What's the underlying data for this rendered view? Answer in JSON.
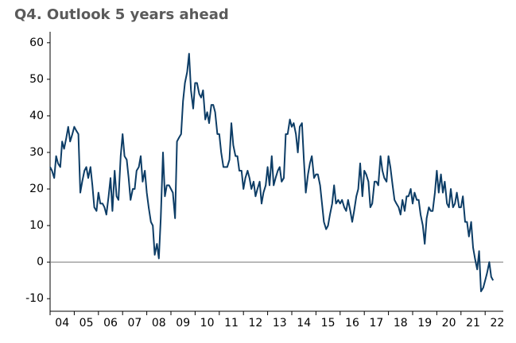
{
  "chart_data": {
    "type": "line",
    "title": "Q4. Outlook 5 years ahead",
    "x": [
      2004,
      2004.08,
      2004.17,
      2004.25,
      2004.33,
      2004.42,
      2004.5,
      2004.58,
      2004.67,
      2004.75,
      2004.83,
      2004.92,
      2005,
      2005.08,
      2005.17,
      2005.25,
      2005.33,
      2005.42,
      2005.5,
      2005.58,
      2005.67,
      2005.75,
      2005.83,
      2005.92,
      2006,
      2006.08,
      2006.17,
      2006.25,
      2006.33,
      2006.42,
      2006.5,
      2006.58,
      2006.67,
      2006.75,
      2006.83,
      2006.92,
      2007,
      2007.08,
      2007.17,
      2007.25,
      2007.33,
      2007.42,
      2007.5,
      2007.58,
      2007.67,
      2007.75,
      2007.83,
      2007.92,
      2008,
      2008.08,
      2008.17,
      2008.25,
      2008.33,
      2008.42,
      2008.5,
      2008.58,
      2008.67,
      2008.75,
      2008.83,
      2008.92,
      2009,
      2009.08,
      2009.17,
      2009.25,
      2009.33,
      2009.42,
      2009.5,
      2009.58,
      2009.67,
      2009.75,
      2009.83,
      2009.92,
      2010,
      2010.08,
      2010.17,
      2010.25,
      2010.33,
      2010.42,
      2010.5,
      2010.58,
      2010.67,
      2010.75,
      2010.83,
      2010.92,
      2011,
      2011.08,
      2011.17,
      2011.25,
      2011.33,
      2011.42,
      2011.5,
      2011.58,
      2011.67,
      2011.75,
      2011.83,
      2011.92,
      2012,
      2012.08,
      2012.17,
      2012.25,
      2012.33,
      2012.42,
      2012.5,
      2012.58,
      2012.67,
      2012.75,
      2012.83,
      2012.92,
      2013,
      2013.08,
      2013.17,
      2013.25,
      2013.33,
      2013.42,
      2013.5,
      2013.58,
      2013.67,
      2013.75,
      2013.83,
      2013.92,
      2014,
      2014.08,
      2014.17,
      2014.25,
      2014.33,
      2014.42,
      2014.5,
      2014.58,
      2014.67,
      2014.75,
      2014.83,
      2014.92,
      2015,
      2015.08,
      2015.17,
      2015.25,
      2015.33,
      2015.42,
      2015.5,
      2015.58,
      2015.67,
      2015.75,
      2015.83,
      2015.92,
      2016,
      2016.08,
      2016.17,
      2016.25,
      2016.33,
      2016.42,
      2016.5,
      2016.58,
      2016.67,
      2016.75,
      2016.83,
      2016.92,
      2017,
      2017.08,
      2017.17,
      2017.25,
      2017.33,
      2017.42,
      2017.5,
      2017.58,
      2017.67,
      2017.75,
      2017.83,
      2017.92,
      2018,
      2018.08,
      2018.17,
      2018.25,
      2018.33,
      2018.42,
      2018.5,
      2018.58,
      2018.67,
      2018.75,
      2018.83,
      2018.92,
      2019,
      2019.08,
      2019.17,
      2019.25,
      2019.33,
      2019.42,
      2019.5,
      2019.58,
      2019.67,
      2019.75,
      2019.83,
      2019.92,
      2020,
      2020.08,
      2020.17,
      2020.25,
      2020.33,
      2020.42,
      2020.5,
      2020.58,
      2020.67,
      2020.75,
      2020.83,
      2020.92,
      2021,
      2021.08,
      2021.17,
      2021.25,
      2021.33,
      2021.42,
      2021.5,
      2021.58,
      2021.67,
      2021.75,
      2021.83,
      2021.92,
      2022,
      2022.08,
      2022.17,
      2022.25,
      2022.33
    ],
    "series": [
      {
        "color": "#0d3d66",
        "values": [
          26,
          25,
          23,
          29,
          27,
          26,
          33,
          31,
          34,
          37,
          33,
          35,
          37,
          36,
          35,
          19,
          22,
          25,
          26,
          23,
          26,
          21,
          15,
          14,
          19,
          16,
          16,
          15,
          13,
          18,
          23,
          14,
          25,
          18,
          17,
          29,
          35,
          29,
          28,
          23,
          17,
          20,
          20,
          25,
          26,
          29,
          22,
          25,
          19,
          15,
          11,
          10,
          2,
          5,
          1,
          12,
          30,
          18,
          21,
          21,
          20,
          19,
          12,
          33,
          34,
          35,
          44,
          49,
          52,
          57,
          47,
          42,
          49,
          49,
          46,
          45,
          47,
          39,
          41,
          38,
          43,
          43,
          41,
          35,
          35,
          30,
          26,
          26,
          26,
          28,
          38,
          32,
          29,
          29,
          25,
          25,
          20,
          23,
          25,
          23,
          20,
          22,
          18,
          20,
          22,
          16,
          19,
          21,
          26,
          21,
          29,
          21,
          23,
          25,
          26,
          22,
          23,
          35,
          35,
          39,
          37,
          38,
          35,
          30,
          37,
          38,
          28,
          19,
          24,
          27,
          29,
          23,
          24,
          24,
          21,
          16,
          11,
          9,
          10,
          13,
          16,
          21,
          16,
          17,
          16,
          17,
          15,
          14,
          17,
          14,
          11,
          14,
          18,
          20,
          27,
          18,
          25,
          24,
          22,
          15,
          16,
          22,
          22,
          21,
          29,
          25,
          23,
          22,
          29,
          26,
          21,
          17,
          16,
          15,
          13,
          17,
          14,
          18,
          18,
          20,
          16,
          19,
          17,
          17,
          13,
          10,
          5,
          12,
          15,
          14,
          14,
          19,
          25,
          19,
          24,
          19,
          22,
          16,
          15,
          20,
          15,
          16,
          19,
          15,
          15,
          18,
          11,
          11,
          7,
          11,
          4,
          1,
          -2,
          3,
          -8,
          -7,
          -5,
          -3,
          0,
          -4,
          -5
        ]
      }
    ],
    "xlim": [
      2004,
      2022.75
    ],
    "xticks": [
      {
        "value": 2004.5,
        "label": "04"
      },
      {
        "value": 2005.5,
        "label": "05"
      },
      {
        "value": 2006.5,
        "label": "06"
      },
      {
        "value": 2007.5,
        "label": "07"
      },
      {
        "value": 2008.5,
        "label": "08"
      },
      {
        "value": 2009.5,
        "label": "09"
      },
      {
        "value": 2010.5,
        "label": "10"
      },
      {
        "value": 2011.5,
        "label": "11"
      },
      {
        "value": 2012.5,
        "label": "12"
      },
      {
        "value": 2013.5,
        "label": "13"
      },
      {
        "value": 2014.5,
        "label": "14"
      },
      {
        "value": 2015.5,
        "label": "15"
      },
      {
        "value": 2016.5,
        "label": "16"
      },
      {
        "value": 2017.5,
        "label": "17"
      },
      {
        "value": 2018.5,
        "label": "18"
      },
      {
        "value": 2019.5,
        "label": "19"
      },
      {
        "value": 2020.5,
        "label": "20"
      },
      {
        "value": 2021.5,
        "label": "21"
      },
      {
        "value": 2022.5,
        "label": "22"
      }
    ],
    "ylim": [
      -13,
      63
    ],
    "yticks": [
      -10,
      0,
      10,
      20,
      30,
      40,
      50,
      60
    ]
  }
}
